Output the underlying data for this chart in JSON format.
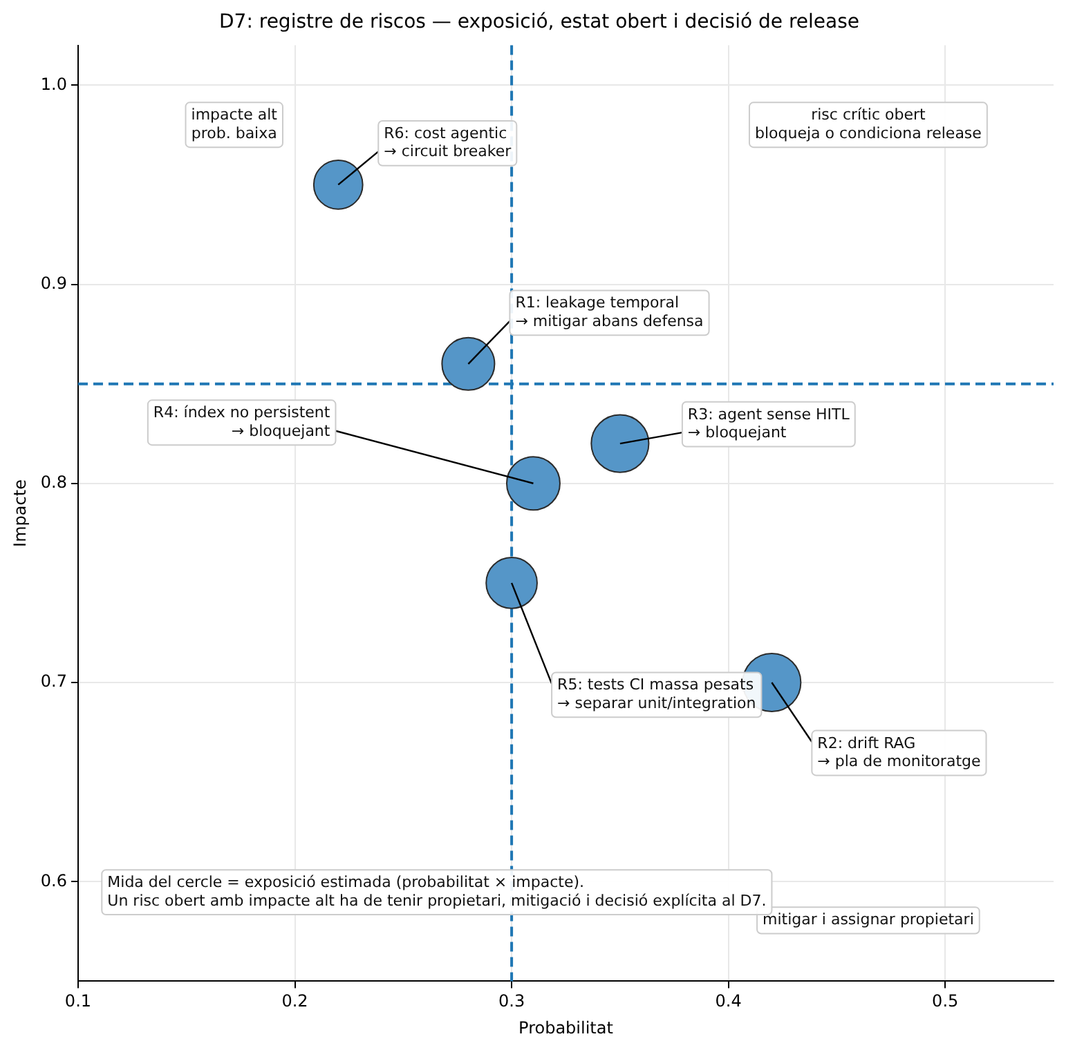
{
  "chart_data": {
    "type": "bubble",
    "title": "D7: registre de riscos — exposició, estat obert i decisió de release",
    "xlabel": "Probabilitat",
    "ylabel": "Impacte",
    "series": [
      {
        "color": "#5596c8",
        "x": [
          0.22,
          0.28,
          0.35,
          0.31,
          0.3,
          0.42
        ],
        "values": [
          0.95,
          0.86,
          0.82,
          0.8,
          0.75,
          0.7
        ],
        "sizes": [
          0.71,
          0.82,
          0.98,
          0.84,
          0.77,
          1.0
        ]
      }
    ],
    "xlim": [
      0.1,
      0.55
    ],
    "xticks": [
      0.1,
      0.2,
      0.3,
      0.4,
      0.5
    ],
    "ylim": [
      0.55,
      1.02
    ],
    "yticks": [
      0.6,
      0.7,
      0.8,
      0.9,
      {
        "value": 1,
        "label": "1.0"
      }
    ],
    "grid": true,
    "legend": false,
    "marker": "circle",
    "ref_lines": [
      {
        "axis": "x",
        "value": 0.3,
        "color": "#1f77b4",
        "line_style": "dashed"
      },
      {
        "axis": "y",
        "value": 0.85,
        "color": "#1f77b4",
        "line_style": "dashed"
      }
    ],
    "annotations": [
      "impacte alt\nprob. baixa",
      "risc crític obert\nbloqueja o condiciona release",
      "mitigar i assignar propietari",
      "Mida del cercle = exposició estimada (probabilitat × impacte).\nUn risc obert amb impacte alt ha de tenir propietari, mitigació i decisió explícita al D7.",
      {
        "text": "R6: cost agentic\n→ circuit breaker",
        "x": 0.22,
        "y": 0.95
      },
      {
        "text": "R1: leakage temporal\n→ mitigar abans defensa",
        "x": 0.28,
        "y": 0.86
      },
      {
        "text": "R3: agent sense HITL\n→ bloquejant",
        "x": 0.35,
        "y": 0.82
      },
      {
        "text": "R4: índex no persistent\n→ bloquejant",
        "x": 0.31,
        "y": 0.8
      },
      {
        "text": "R5: tests CI massa pesats\n→ separar unit/integration",
        "x": 0.3,
        "y": 0.75
      },
      {
        "text": "R2: drift RAG\n→ pla de monitoratge",
        "x": 0.42,
        "y": 0.7
      }
    ]
  }
}
